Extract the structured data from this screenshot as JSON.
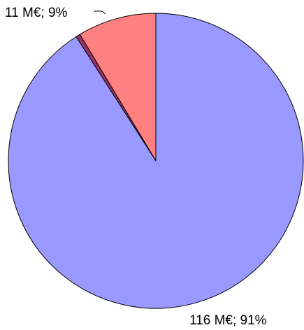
{
  "chart_data": {
    "type": "pie",
    "title": "",
    "legend": "none",
    "start_angle_deg": 0,
    "direction": "counterclockwise",
    "slices": [
      {
        "label": "11 M€; 9%",
        "value": 11,
        "percent": 9,
        "color": "#FF8080"
      },
      {
        "label": "",
        "value": 0.6,
        "percent": 0.5,
        "color": "#993366"
      },
      {
        "label": "116 M€; 91%",
        "value": 116,
        "percent": 91,
        "color": "#9999FF"
      }
    ]
  }
}
